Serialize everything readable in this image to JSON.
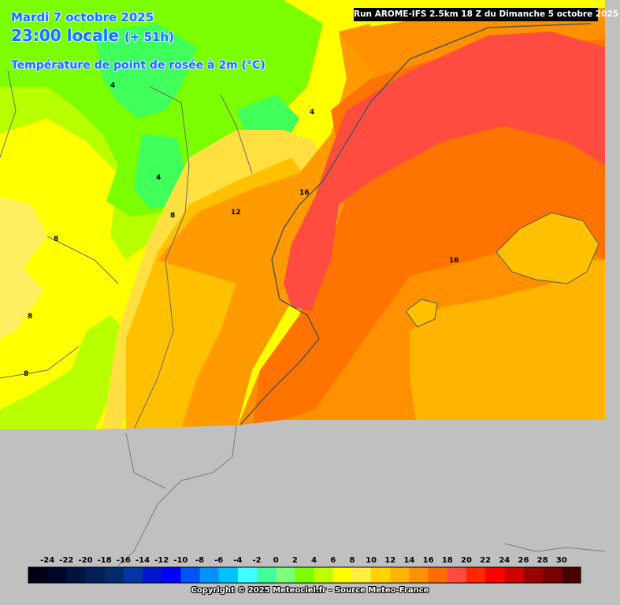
{
  "header": {
    "date": "Mardi 7 octobre 2025",
    "time": "23:00 locale",
    "offset": "(+ 51h)",
    "variable": "Température de point de rosée à 2m (°C)",
    "run": "Run AROME-IFS 2.5km 18 Z du Dimanche 5 octobre 2025"
  },
  "contour_labels": [
    {
      "text": "4"
    },
    {
      "text": "4"
    },
    {
      "text": "4"
    },
    {
      "text": "8"
    },
    {
      "text": "8"
    },
    {
      "text": "8"
    },
    {
      "text": "8"
    },
    {
      "text": "12"
    },
    {
      "text": "16"
    },
    {
      "text": "16"
    }
  ],
  "legend": {
    "labels": [
      "-24",
      "-22",
      "-20",
      "-18",
      "-16",
      "-14",
      "-12",
      "-10",
      "-8",
      "-6",
      "-4",
      "-2",
      "0",
      "2",
      "4",
      "6",
      "8",
      "10",
      "12",
      "14",
      "16",
      "18",
      "20",
      "22",
      "24",
      "26",
      "28",
      "30"
    ],
    "colors": [
      "#000018",
      "#00062a",
      "#00133f",
      "#021f56",
      "#042a6a",
      "#0236a0",
      "#0014d4",
      "#0000ff",
      "#0053ff",
      "#0092ff",
      "#00c2ff",
      "#40ffff",
      "#40ff9a",
      "#7cff7a",
      "#7bff00",
      "#bcff00",
      "#ffff00",
      "#ffee40",
      "#ffd200",
      "#ffb400",
      "#ff9000",
      "#ff6c00",
      "#ff4c40",
      "#ff2800",
      "#ff0000",
      "#d00000",
      "#9a0000",
      "#7a0000",
      "#4a0000"
    ]
  },
  "copyright": "Copyright © 2025 Meteociel.fr - Source Meteo-France"
}
